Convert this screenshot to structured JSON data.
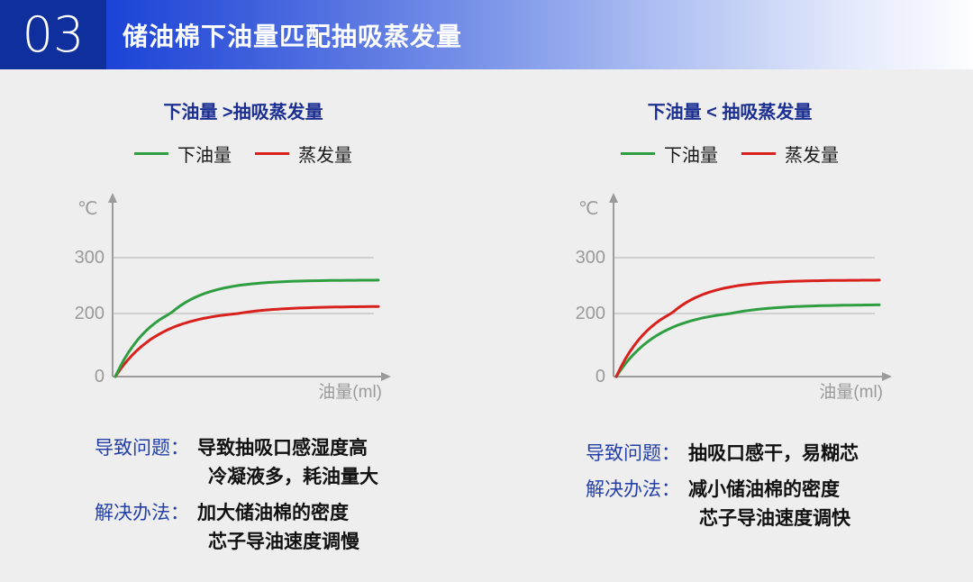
{
  "header": {
    "number": "03",
    "title": "储油棉下油量匹配抽吸蒸发量"
  },
  "colors": {
    "header_box": "#0f2f9d",
    "header_gradient_start": "#1b43d6",
    "background": "#eeeeee",
    "panel_title_navy": "#1b2e91",
    "note_label_blue": "#2440a8",
    "curve_green": "#2e9e40",
    "curve_red": "#d8201c",
    "axis_gray": "#9b9b9b",
    "grid_gray": "#bfbfbf"
  },
  "panels": [
    {
      "title": "下油量 >抽吸蒸发量",
      "legend": [
        {
          "label": "下油量",
          "color": "#2e9e40"
        },
        {
          "label": "蒸发量",
          "color": "#d8201c"
        }
      ],
      "problem_label": "导致问题：",
      "problem_lines": [
        "导致抽吸口感湿度高",
        "冷凝液多，耗油量大"
      ],
      "solution_label": "解决办法：",
      "solution_lines": [
        "加大储油棉的密度",
        "芯子导油速度调慢"
      ]
    },
    {
      "title": "下油量 < 抽吸蒸发量",
      "legend": [
        {
          "label": "下油量",
          "color": "#2e9e40"
        },
        {
          "label": "蒸发量",
          "color": "#d8201c"
        }
      ],
      "problem_label": "导致问题：",
      "problem_lines": [
        "抽吸口感干，易糊芯"
      ],
      "solution_label": "解决办法：",
      "solution_lines": [
        "减小储油棉的密度",
        "芯子导油速度调快"
      ]
    }
  ],
  "chart_data": [
    {
      "type": "line",
      "title": "下油量 >抽吸蒸发量",
      "xlabel": "油量(ml)",
      "ylabel": "℃",
      "yticks": [
        0,
        200,
        300
      ],
      "ylim": [
        0,
        380
      ],
      "grid": true,
      "legend_position": "top",
      "series": [
        {
          "name": "下油量",
          "color": "#2e9e40",
          "shape": "saturating_exponential",
          "start": 0,
          "asymptote": 260,
          "rate": 7
        },
        {
          "name": "蒸发量",
          "color": "#d8201c",
          "shape": "saturating_exponential",
          "start": 0,
          "asymptote": 213,
          "rate": 6
        }
      ]
    },
    {
      "type": "line",
      "title": "下油量 < 抽吸蒸发量",
      "xlabel": "油量(ml)",
      "ylabel": "℃",
      "yticks": [
        0,
        200,
        300
      ],
      "ylim": [
        0,
        380
      ],
      "grid": true,
      "legend_position": "top",
      "series": [
        {
          "name": "下油量",
          "color": "#2e9e40",
          "shape": "saturating_exponential",
          "start": 0,
          "asymptote": 216,
          "rate": 6
        },
        {
          "name": "蒸发量",
          "color": "#d8201c",
          "shape": "saturating_exponential",
          "start": 0,
          "asymptote": 260,
          "rate": 7
        }
      ]
    }
  ]
}
